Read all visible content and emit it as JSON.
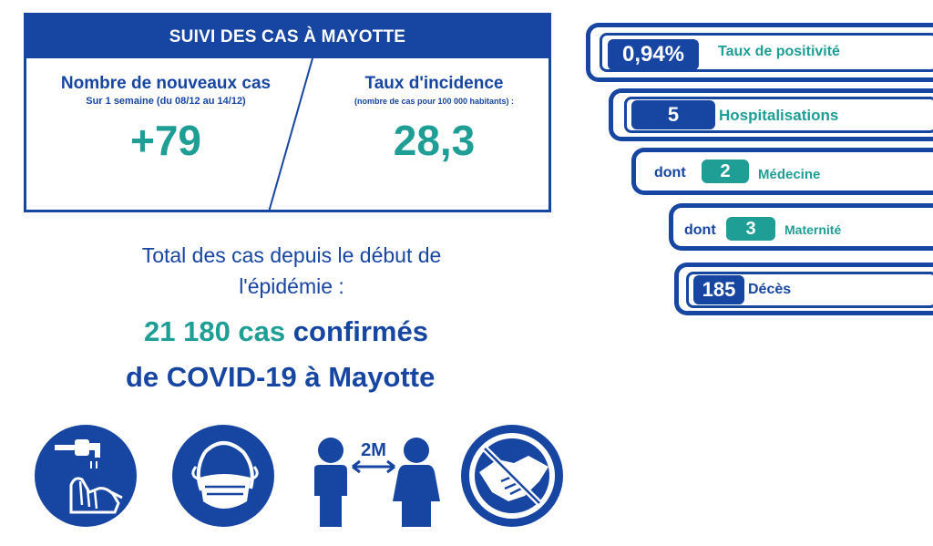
{
  "card": {
    "title": "SUIVI DES CAS À MAYOTTE",
    "left": {
      "title": "Nombre de nouveaux cas",
      "subtitle": "Sur 1 semaine (du 08/12 au 14/12)",
      "value": "+79"
    },
    "right": {
      "title": "Taux d'incidence",
      "subtitle": "(nombre de cas pour 100 000 habitants) :",
      "value": "28,3"
    }
  },
  "total": {
    "line1": "Total des cas depuis le début de",
    "line2": "l'épidémie :",
    "count": "21 180 cas",
    "word_confirmed": "confirmés",
    "line4": "de COVID-19 à Mayotte"
  },
  "stats": [
    {
      "value": "0,94%",
      "label": "Taux de positivité",
      "prefix": ""
    },
    {
      "value": "5",
      "label": "Hospitalisations",
      "prefix": ""
    },
    {
      "value": "2",
      "label": "Médecine",
      "prefix": "dont"
    },
    {
      "value": "3",
      "label": "Maternité",
      "prefix": "dont"
    },
    {
      "value": "185",
      "label": "Décès",
      "prefix": ""
    }
  ],
  "icons": {
    "distance_label": "2M",
    "names": [
      "hand-washing-icon",
      "face-mask-icon",
      "social-distance-icon",
      "no-handshake-icon"
    ]
  },
  "colors": {
    "navy": "#1746a2",
    "teal": "#1f9e96"
  }
}
